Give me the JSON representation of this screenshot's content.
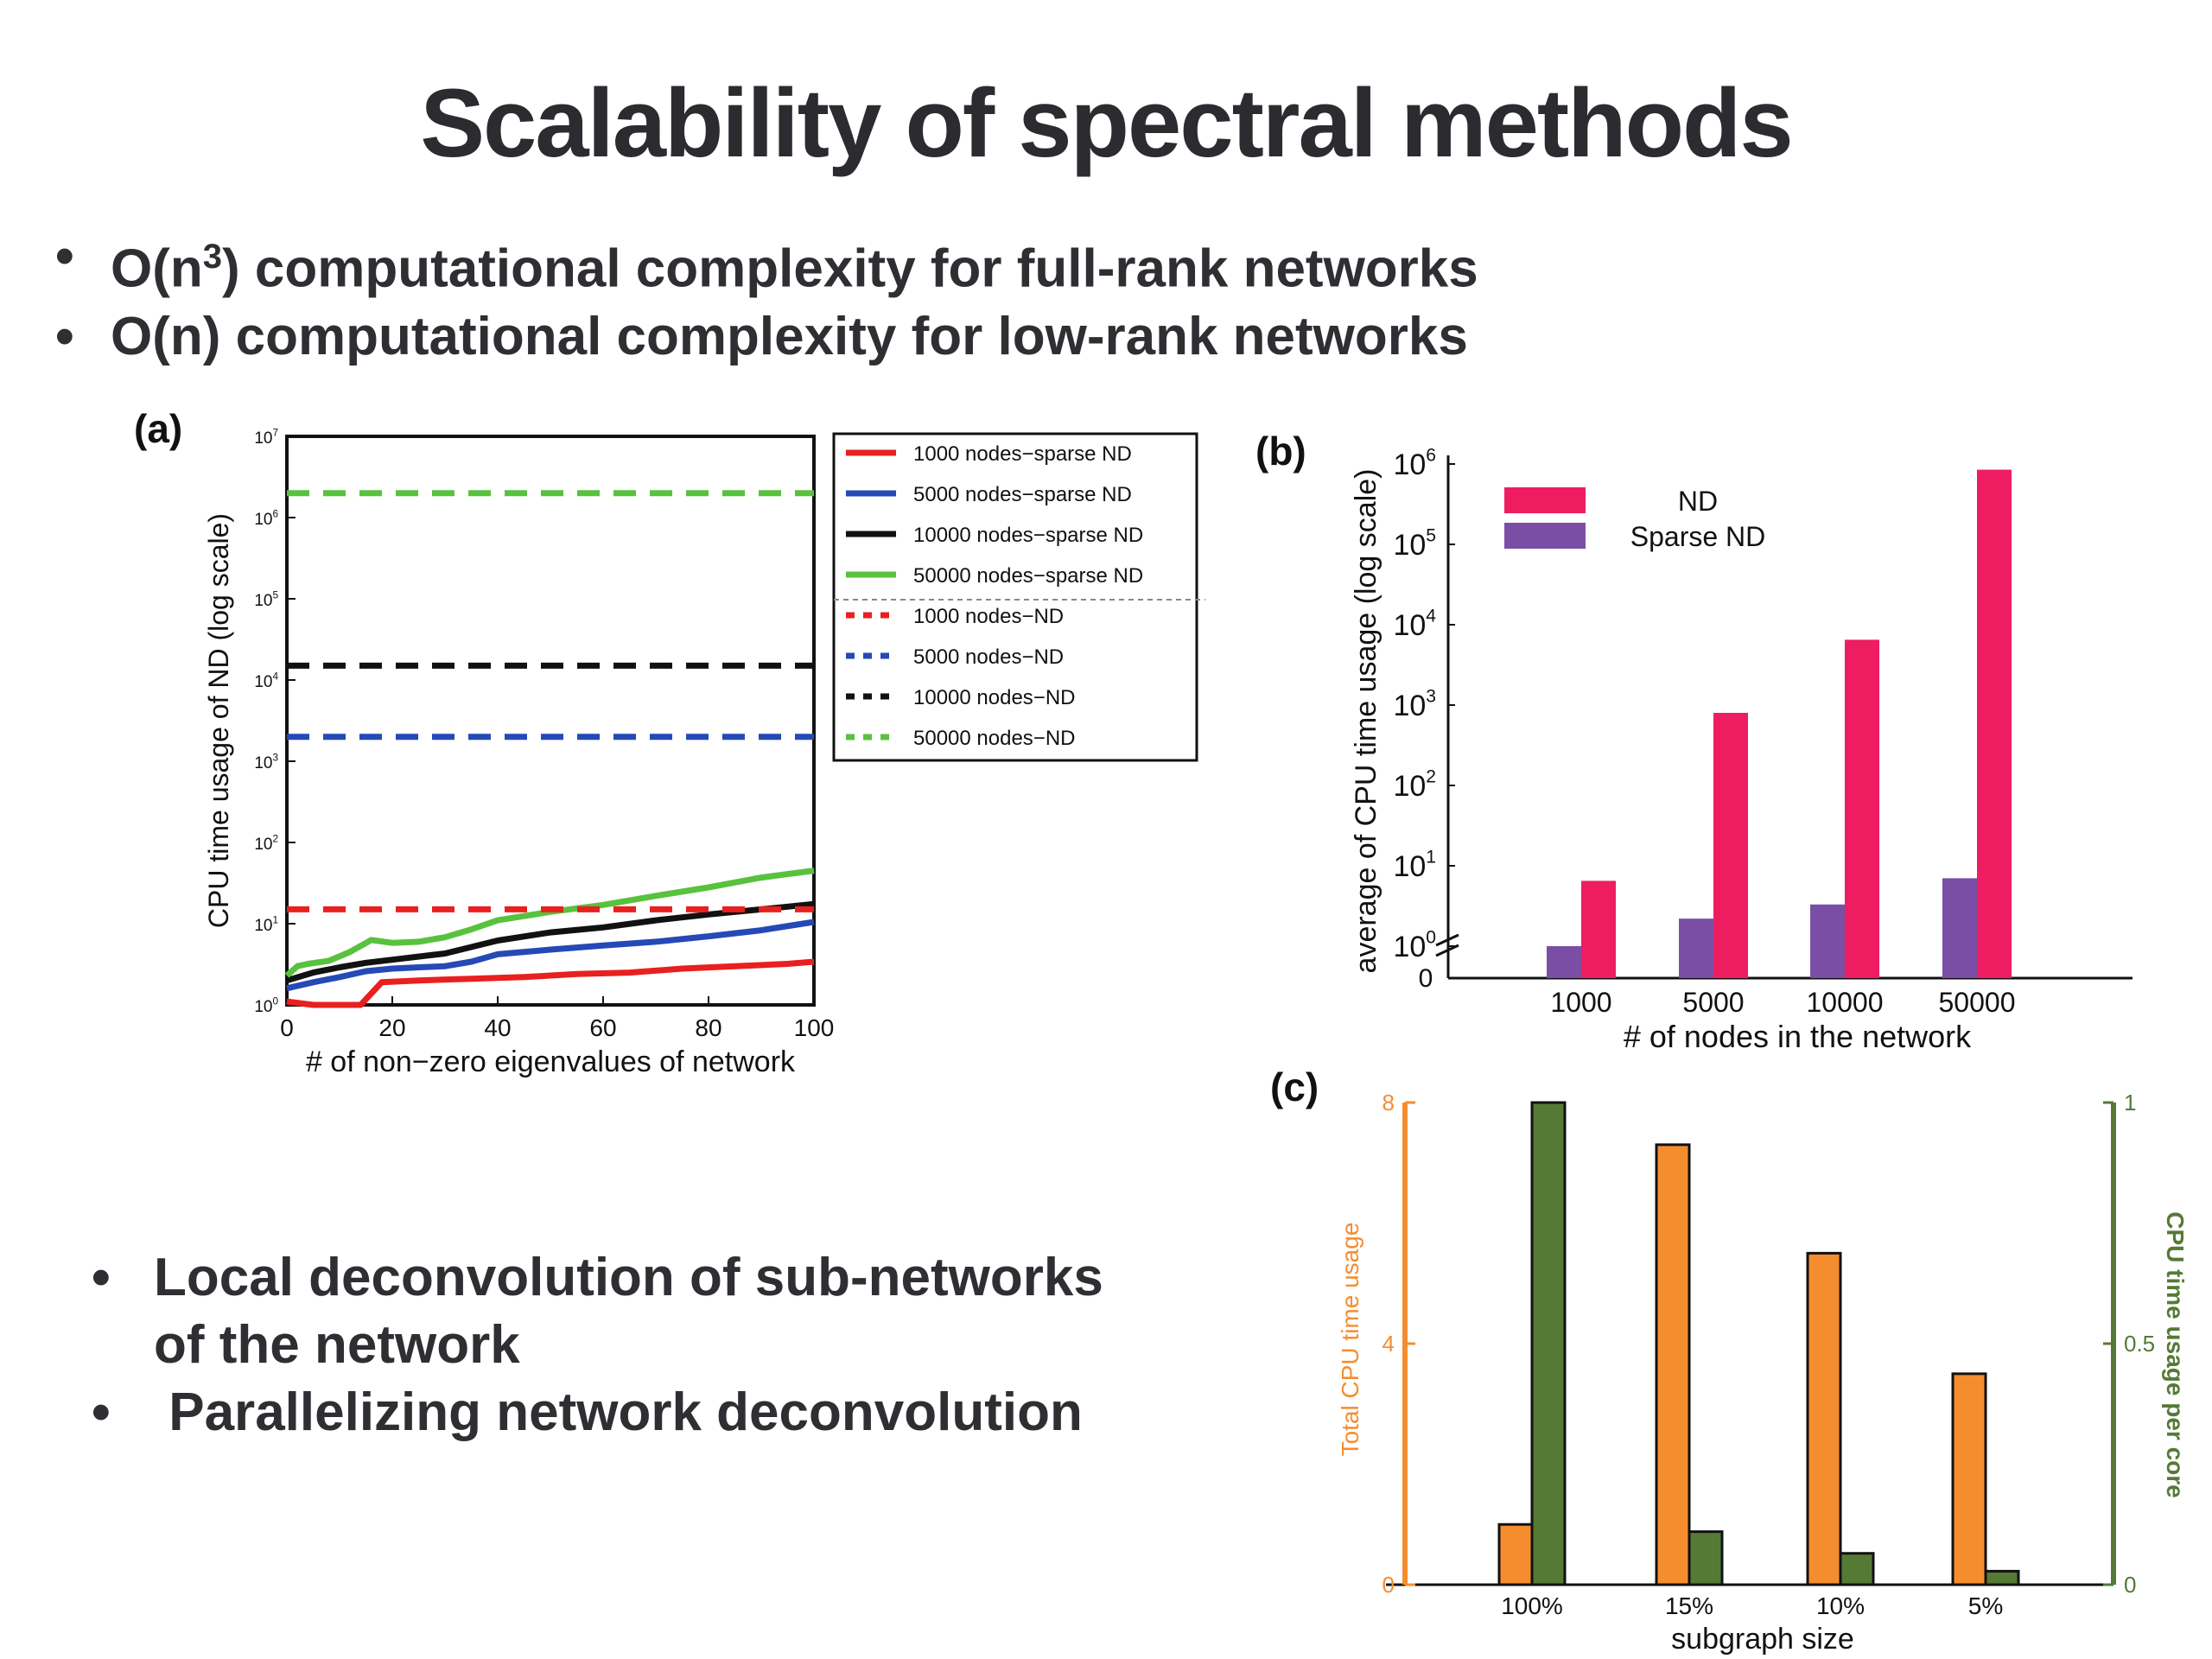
{
  "slide": {
    "title": "Scalability of spectral methods",
    "bullets_top": [
      {
        "pre": "O(n",
        "sup": "3",
        "post": ") computational complexity for full-rank networks"
      },
      {
        "pre": "O(n) computational complexity for low-rank networks",
        "sup": "",
        "post": ""
      }
    ],
    "bullets_bottom": [
      {
        "text": "Local deconvolution of sub-networks",
        "cont": "of the network"
      },
      {
        "text": " Parallelizing network deconvolution",
        "cont": ""
      }
    ]
  },
  "chart_data": [
    {
      "panel": "(a)",
      "type": "line",
      "xlabel": "# of non−zero eigenvalues of network",
      "ylabel": "CPU time usage of ND (log scale)",
      "xlim": [
        0,
        100
      ],
      "ylim": [
        1,
        10000000
      ],
      "y_scale": "log",
      "x_ticks": [
        "0",
        "20",
        "40",
        "60",
        "80",
        "100"
      ],
      "y_ticks": [
        {
          "base": "10",
          "exp": "0"
        },
        {
          "base": "10",
          "exp": "1"
        },
        {
          "base": "10",
          "exp": "2"
        },
        {
          "base": "10",
          "exp": "3"
        },
        {
          "base": "10",
          "exp": "4"
        },
        {
          "base": "10",
          "exp": "5"
        },
        {
          "base": "10",
          "exp": "6"
        },
        {
          "base": "10",
          "exp": "7"
        }
      ],
      "legend_position": "outside-right",
      "series": [
        {
          "name": "1000 nodes−sparse ND",
          "color": "#e8201f",
          "style": "solid",
          "x": [
            0,
            5,
            10,
            14,
            18,
            25,
            35,
            45,
            55,
            65,
            75,
            85,
            95,
            100
          ],
          "values": [
            1.1,
            1.0,
            1.0,
            1.0,
            1.9,
            2.0,
            2.1,
            2.2,
            2.4,
            2.5,
            2.8,
            3.0,
            3.2,
            3.4
          ]
        },
        {
          "name": "5000 nodes−sparse ND",
          "color": "#2549b6",
          "style": "solid",
          "x": [
            0,
            5,
            10,
            15,
            20,
            25,
            30,
            35,
            40,
            50,
            60,
            70,
            80,
            90,
            100
          ],
          "values": [
            1.6,
            1.9,
            2.2,
            2.6,
            2.8,
            2.9,
            3.0,
            3.4,
            4.2,
            4.8,
            5.4,
            6.0,
            7.0,
            8.3,
            10.5
          ]
        },
        {
          "name": "10000 nodes−sparse ND",
          "color": "#111111",
          "style": "solid",
          "x": [
            0,
            5,
            10,
            15,
            20,
            30,
            40,
            50,
            60,
            70,
            80,
            90,
            100
          ],
          "values": [
            2.0,
            2.5,
            2.9,
            3.3,
            3.6,
            4.3,
            6.2,
            7.8,
            9.0,
            11.0,
            13.0,
            15.0,
            17.5
          ]
        },
        {
          "name": "50000 nodes−sparse ND",
          "color": "#58c23e",
          "style": "solid",
          "x": [
            0,
            2,
            4,
            8,
            12,
            16,
            20,
            25,
            30,
            35,
            40,
            50,
            60,
            70,
            80,
            90,
            100
          ],
          "values": [
            2.3,
            3.0,
            3.2,
            3.5,
            4.5,
            6.3,
            5.8,
            6.0,
            6.8,
            8.5,
            11.0,
            14.0,
            17.0,
            22.0,
            28.0,
            37.0,
            45.0
          ]
        },
        {
          "name": "1000 nodes−ND",
          "color": "#e8201f",
          "style": "dashed",
          "x": [
            0,
            100
          ],
          "values": [
            15,
            15
          ]
        },
        {
          "name": "5000 nodes−ND",
          "color": "#2549b6",
          "style": "dashed",
          "x": [
            0,
            100
          ],
          "values": [
            2000,
            2000
          ]
        },
        {
          "name": "10000 nodes−ND",
          "color": "#111111",
          "style": "dashed",
          "x": [
            0,
            100
          ],
          "values": [
            15000,
            15000
          ]
        },
        {
          "name": "50000 nodes−ND",
          "color": "#58c23e",
          "style": "dashed",
          "x": [
            0,
            100
          ],
          "values": [
            2000000,
            2000000
          ]
        }
      ]
    },
    {
      "panel": "(b)",
      "type": "bar",
      "xlabel": "# of nodes in the network",
      "ylabel": "average of CPU time usage (log scale)",
      "y_scale": "log",
      "ylim": [
        0.4,
        1000000
      ],
      "axis_break": true,
      "y_ticks": [
        {
          "base": "10",
          "exp": "0"
        },
        {
          "base": "10",
          "exp": "1"
        },
        {
          "base": "10",
          "exp": "2"
        },
        {
          "base": "10",
          "exp": "3"
        },
        {
          "base": "10",
          "exp": "4"
        },
        {
          "base": "10",
          "exp": "5"
        },
        {
          "base": "10",
          "exp": "6"
        }
      ],
      "y_zero_label": "0",
      "categories": [
        "1000",
        "5000",
        "10000",
        "50000"
      ],
      "legend_position": "top-left",
      "series": [
        {
          "name": "Sparse ND",
          "color": "#7b4ea6",
          "values": [
            1.0,
            2.2,
            3.3,
            7.0
          ]
        },
        {
          "name": "ND",
          "color": "#ee1d61",
          "values": [
            6.5,
            800,
            6500,
            850000
          ]
        }
      ]
    },
    {
      "panel": "(c)",
      "type": "bar",
      "xlabel": "subgraph size",
      "ylabel_left": "Total CPU time usage",
      "ylabel_right": "CPU time usage per core",
      "ylim_left": [
        0,
        8
      ],
      "ylim_right": [
        0,
        1
      ],
      "y_ticks_left": [
        "0",
        "4",
        "8"
      ],
      "y_ticks_right": [
        "0",
        "0.5",
        "1"
      ],
      "categories": [
        "100%",
        "15%",
        "10%",
        "5%"
      ],
      "series": [
        {
          "name": "Total CPU time usage",
          "axis": "left",
          "color": "#f58d2f",
          "values": [
            1.0,
            7.3,
            5.5,
            3.5
          ]
        },
        {
          "name": "CPU time usage per core",
          "axis": "right",
          "color": "#557a36",
          "values": [
            1.0,
            0.11,
            0.065,
            0.028
          ]
        }
      ]
    }
  ]
}
